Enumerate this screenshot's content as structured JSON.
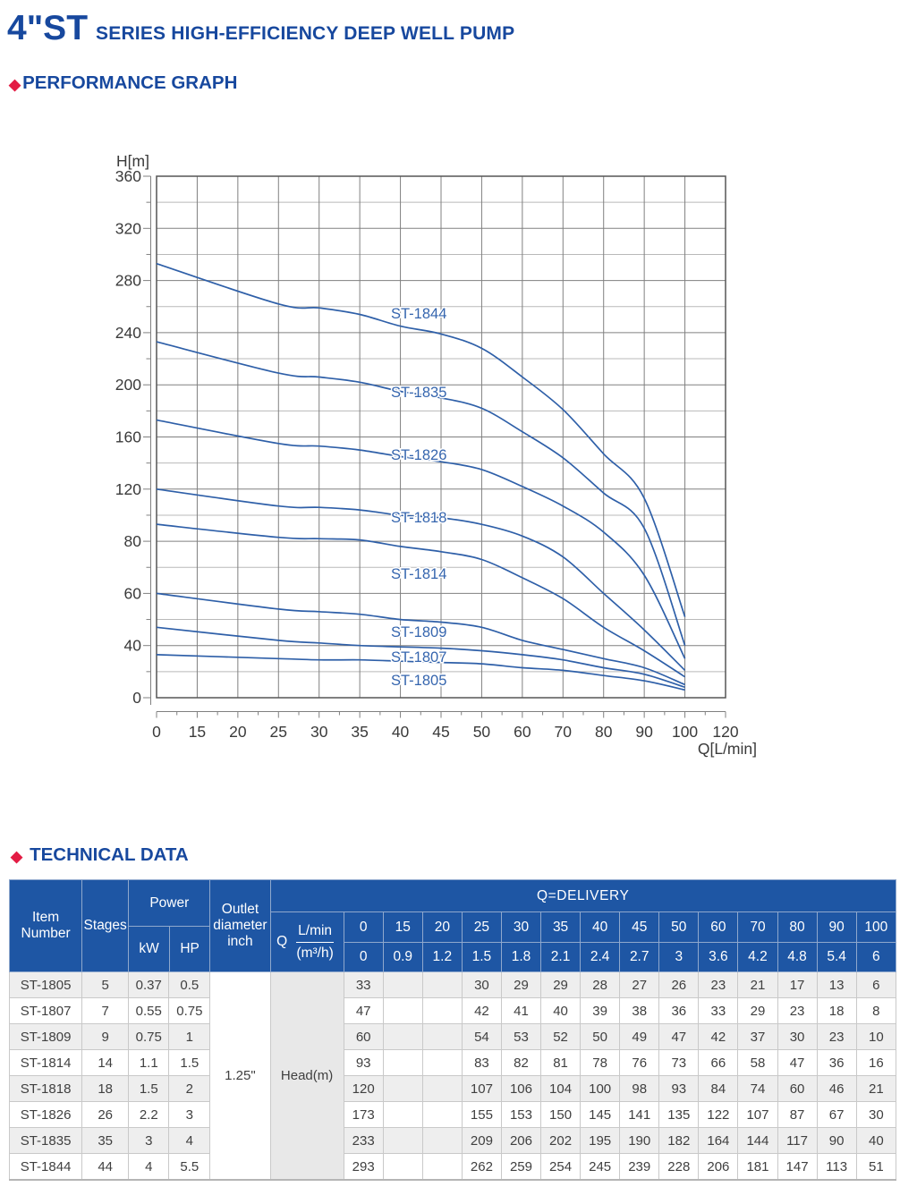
{
  "header": {
    "title_code": "4\"ST",
    "title_rest": "SERIES HIGH-EFFICIENCY DEEP WELL PUMP"
  },
  "sections": {
    "performance": "PERFORMANCE GRAPH",
    "technical": "TECHNICAL DATA"
  },
  "icons": {
    "diamond": "◆"
  },
  "chart_data": {
    "type": "line",
    "x_axis": {
      "label": "Q[L/min]",
      "ticks": [
        0,
        15,
        20,
        25,
        30,
        35,
        40,
        45,
        50,
        60,
        70,
        80,
        90,
        100,
        120
      ]
    },
    "y_axis": {
      "label": "H[m]",
      "ticks": [
        0,
        40,
        60,
        80,
        120,
        160,
        200,
        240,
        280,
        320,
        360
      ]
    },
    "grid": true,
    "curve_color": "#2e5fa8",
    "label_color": "#3565ae",
    "x": [
      0,
      15,
      20,
      25,
      30,
      35,
      40,
      45,
      50,
      60,
      70,
      80,
      90,
      100
    ],
    "series": [
      {
        "name": "ST-1805",
        "values": [
          33,
          null,
          null,
          30,
          29,
          29,
          28,
          27,
          26,
          23,
          21,
          17,
          13,
          6
        ]
      },
      {
        "name": "ST-1807",
        "values": [
          47,
          null,
          null,
          42,
          41,
          40,
          39,
          38,
          36,
          33,
          29,
          23,
          18,
          8
        ]
      },
      {
        "name": "ST-1809",
        "values": [
          60,
          null,
          null,
          54,
          53,
          52,
          50,
          49,
          47,
          42,
          37,
          30,
          23,
          10
        ]
      },
      {
        "name": "ST-1814",
        "values": [
          93,
          null,
          null,
          83,
          82,
          81,
          78,
          76,
          73,
          66,
          58,
          47,
          36,
          16
        ]
      },
      {
        "name": "ST-1818",
        "values": [
          120,
          null,
          null,
          107,
          106,
          104,
          100,
          98,
          93,
          84,
          74,
          60,
          46,
          21
        ]
      },
      {
        "name": "ST-1826",
        "values": [
          173,
          null,
          null,
          155,
          153,
          150,
          145,
          141,
          135,
          122,
          107,
          87,
          67,
          30
        ]
      },
      {
        "name": "ST-1835",
        "values": [
          233,
          null,
          null,
          209,
          206,
          202,
          195,
          190,
          182,
          164,
          144,
          117,
          90,
          40
        ]
      },
      {
        "name": "ST-1844",
        "values": [
          293,
          null,
          null,
          262,
          259,
          254,
          245,
          239,
          228,
          206,
          181,
          147,
          113,
          51
        ]
      }
    ]
  },
  "table": {
    "delivery": "Q=DELIVERY",
    "item_label": "Item Number",
    "stages_label": "Stages",
    "power_label": "Power",
    "kw_label": "kW",
    "hp_label": "HP",
    "outlet_label": "Outlet diameter inch",
    "q_label": "Q",
    "q_unit_top": "L/min",
    "q_unit_bottom": "(m³/h)",
    "outlet_value": "1.25\"",
    "head_label": "Head(m)",
    "lmin": [
      "0",
      "15",
      "20",
      "25",
      "30",
      "35",
      "40",
      "45",
      "50",
      "60",
      "70",
      "80",
      "90",
      "100"
    ],
    "m3h": [
      "0",
      "0.9",
      "1.2",
      "1.5",
      "1.8",
      "2.1",
      "2.4",
      "2.7",
      "3",
      "3.6",
      "4.2",
      "4.8",
      "5.4",
      "6"
    ],
    "rows": [
      {
        "item": "ST-1805",
        "stages": "5",
        "kw": "0.37",
        "hp": "0.5",
        "heads": [
          "33",
          "",
          "",
          "30",
          "29",
          "29",
          "28",
          "27",
          "26",
          "23",
          "21",
          "17",
          "13",
          "6"
        ]
      },
      {
        "item": "ST-1807",
        "stages": "7",
        "kw": "0.55",
        "hp": "0.75",
        "heads": [
          "47",
          "",
          "",
          "42",
          "41",
          "40",
          "39",
          "38",
          "36",
          "33",
          "29",
          "23",
          "18",
          "8"
        ]
      },
      {
        "item": "ST-1809",
        "stages": "9",
        "kw": "0.75",
        "hp": "1",
        "heads": [
          "60",
          "",
          "",
          "54",
          "53",
          "52",
          "50",
          "49",
          "47",
          "42",
          "37",
          "30",
          "23",
          "10"
        ]
      },
      {
        "item": "ST-1814",
        "stages": "14",
        "kw": "1.1",
        "hp": "1.5",
        "heads": [
          "93",
          "",
          "",
          "83",
          "82",
          "81",
          "78",
          "76",
          "73",
          "66",
          "58",
          "47",
          "36",
          "16"
        ]
      },
      {
        "item": "ST-1818",
        "stages": "18",
        "kw": "1.5",
        "hp": "2",
        "heads": [
          "120",
          "",
          "",
          "107",
          "106",
          "104",
          "100",
          "98",
          "93",
          "84",
          "74",
          "60",
          "46",
          "21"
        ]
      },
      {
        "item": "ST-1826",
        "stages": "26",
        "kw": "2.2",
        "hp": "3",
        "heads": [
          "173",
          "",
          "",
          "155",
          "153",
          "150",
          "145",
          "141",
          "135",
          "122",
          "107",
          "87",
          "67",
          "30"
        ]
      },
      {
        "item": "ST-1835",
        "stages": "35",
        "kw": "3",
        "hp": "4",
        "heads": [
          "233",
          "",
          "",
          "209",
          "206",
          "202",
          "195",
          "190",
          "182",
          "164",
          "144",
          "117",
          "90",
          "40"
        ]
      },
      {
        "item": "ST-1844",
        "stages": "44",
        "kw": "4",
        "hp": "5.5",
        "heads": [
          "293",
          "",
          "",
          "262",
          "259",
          "254",
          "245",
          "239",
          "228",
          "206",
          "181",
          "147",
          "113",
          "51"
        ]
      }
    ]
  },
  "colors": {
    "title_blue": "#17489e",
    "accent_red": "#e31c44",
    "table_header_blue": "#1e56a4",
    "grid_major": "#808080",
    "grid_minor": "#b9b9b9",
    "axis_text": "#3a3a3a",
    "stripe_gray": "#eeeeee"
  }
}
